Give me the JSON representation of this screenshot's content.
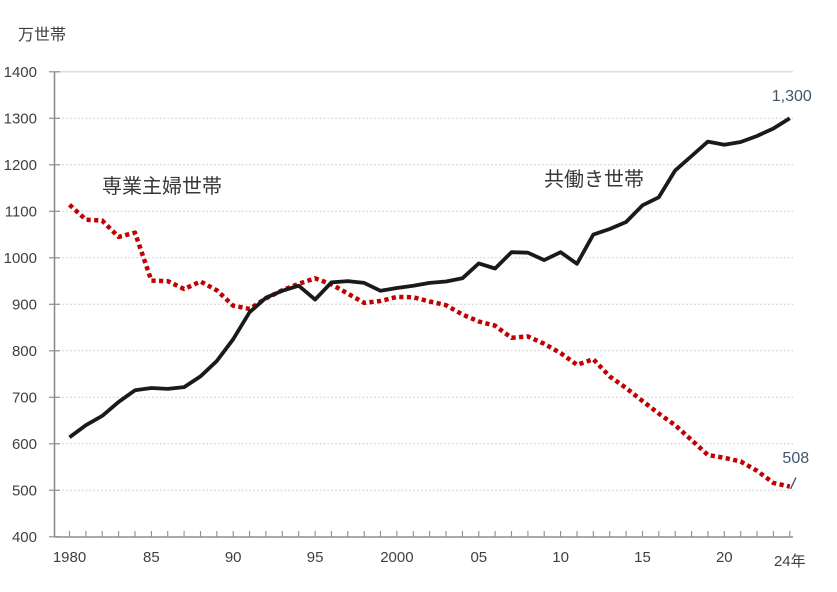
{
  "chart_data": {
    "type": "line",
    "title": "",
    "ylabel_unit": "万世帯",
    "unit_label": "万世帯",
    "ylim": [
      400,
      1400
    ],
    "ytick_step": 100,
    "grid": "horizontal-dotted",
    "x": [
      1980,
      1981,
      1982,
      1983,
      1984,
      1985,
      1986,
      1987,
      1988,
      1989,
      1990,
      1991,
      1992,
      1993,
      1994,
      1995,
      1996,
      1997,
      1998,
      1999,
      2000,
      2001,
      2002,
      2003,
      2004,
      2005,
      2006,
      2007,
      2008,
      2009,
      2010,
      2011,
      2012,
      2013,
      2014,
      2015,
      2016,
      2017,
      2018,
      2019,
      2020,
      2021,
      2022,
      2023,
      2024
    ],
    "xticks": {
      "values": [
        1980,
        1985,
        1990,
        1995,
        2000,
        2005,
        2010,
        2015,
        2020,
        2024
      ],
      "labels": [
        "1980",
        "85",
        "90",
        "95",
        "2000",
        "05",
        "10",
        "15",
        "20",
        "24年"
      ]
    },
    "series": [
      {
        "name": "専業主婦世帯",
        "line_style": "dotted",
        "color": "#c00000",
        "values": [
          1114,
          1082,
          1080,
          1045,
          1054,
          951,
          950,
          933,
          949,
          930,
          897,
          890,
          913,
          930,
          944,
          956,
          943,
          923,
          903,
          907,
          916,
          915,
          906,
          898,
          878,
          863,
          854,
          828,
          831,
          815,
          795,
          770,
          782,
          745,
          720,
          692,
          665,
          640,
          608,
          576,
          570,
          562,
          542,
          516,
          508
        ]
      },
      {
        "name": "共働き世帯",
        "line_style": "solid",
        "color": "#1a1a1a",
        "values": [
          614,
          640,
          660,
          690,
          715,
          720,
          718,
          722,
          745,
          778,
          825,
          883,
          914,
          929,
          940,
          910,
          947,
          950,
          946,
          929,
          935,
          940,
          946,
          949,
          956,
          988,
          977,
          1012,
          1011,
          995,
          1012,
          987,
          1050,
          1062,
          1077,
          1113,
          1130,
          1188,
          1219,
          1250,
          1243,
          1249,
          1262,
          1278,
          1300
        ]
      }
    ],
    "annotations": [
      {
        "text": "1,300",
        "series": "共働き世帯",
        "year": 2024,
        "value": 1300,
        "color": "#44546a"
      },
      {
        "text": "508",
        "series": "専業主婦世帯",
        "year": 2024,
        "value": 508,
        "color": "#44546a"
      }
    ],
    "colors": {
      "axis": "#8e8e8e",
      "gridline": "#c9c9c9",
      "plot_top_border": "#d4d4d4",
      "tick_label": "#3f3f3f",
      "series_label_text": "#383838",
      "annotation_text": "#44546a"
    },
    "legend_position": "inline-labels-near-lines"
  }
}
